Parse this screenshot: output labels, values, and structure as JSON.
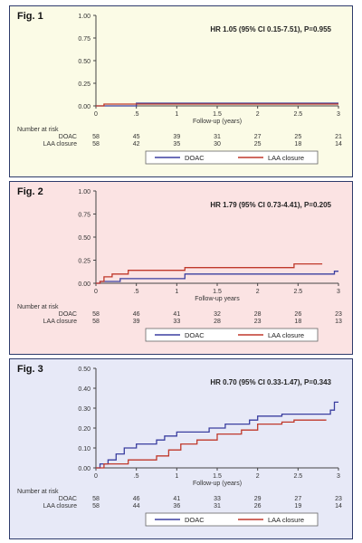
{
  "chart_data": [
    {
      "type": "line",
      "figure_label": "Fig. 1",
      "annotation": "HR 1.05 (95% CI 0.15-7.51), P=0.955",
      "xlabel": "Follow-up (years)",
      "xlim": [
        0,
        3
      ],
      "ylim": [
        0,
        1
      ],
      "x_ticks": [
        "0",
        ".5",
        "1",
        "1.5",
        "2",
        "2.5",
        "3"
      ],
      "y_ticks": [
        "0.00",
        "0.25",
        "0.50",
        "0.75",
        "1.00"
      ],
      "risk_title": "Number at risk",
      "series": [
        {
          "name": "DOAC",
          "color": "#3b3fa0",
          "x": [
            0,
            0.5,
            0.5,
            3
          ],
          "y": [
            0,
            0,
            0.03,
            0.03
          ],
          "risk": [
            "58",
            "45",
            "39",
            "31",
            "27",
            "25",
            "21"
          ]
        },
        {
          "name": "LAA closure",
          "color": "#c0392b",
          "x": [
            0,
            0.1,
            0.1,
            3
          ],
          "y": [
            0,
            0,
            0.02,
            0.02
          ],
          "risk": [
            "58",
            "42",
            "35",
            "30",
            "25",
            "18",
            "14"
          ]
        }
      ]
    },
    {
      "type": "line",
      "figure_label": "Fig. 2",
      "annotation": "HR 1.79 (95% CI 0.73-4.41), P=0.205",
      "xlabel": "Follow-up years",
      "xlim": [
        0,
        3
      ],
      "ylim": [
        0,
        1
      ],
      "x_ticks": [
        "0",
        ".5",
        "1",
        "1.5",
        "2",
        "2.5",
        "3"
      ],
      "y_ticks": [
        "0.00",
        "0.25",
        "0.50",
        "0.75",
        "1.00"
      ],
      "risk_title": "Number at risk",
      "series": [
        {
          "name": "DOAC",
          "color": "#3b3fa0",
          "x": [
            0,
            0.05,
            0.05,
            0.3,
            0.3,
            1.1,
            1.1,
            2.95,
            2.95,
            3
          ],
          "y": [
            0,
            0,
            0.02,
            0.02,
            0.05,
            0.05,
            0.1,
            0.1,
            0.13,
            0.13
          ],
          "risk": [
            "58",
            "46",
            "41",
            "32",
            "28",
            "26",
            "23"
          ]
        },
        {
          "name": "LAA closure",
          "color": "#c0392b",
          "x": [
            0,
            0.05,
            0.05,
            0.1,
            0.1,
            0.2,
            0.2,
            0.4,
            0.4,
            1.1,
            1.1,
            2.45,
            2.45,
            2.8
          ],
          "y": [
            0,
            0,
            0.02,
            0.02,
            0.07,
            0.07,
            0.1,
            0.1,
            0.14,
            0.14,
            0.17,
            0.17,
            0.21,
            0.21
          ],
          "risk": [
            "58",
            "39",
            "33",
            "28",
            "23",
            "18",
            "13"
          ]
        }
      ]
    },
    {
      "type": "line",
      "figure_label": "Fig. 3",
      "annotation": "HR 0.70 (95% CI 0.33-1.47), P=0.343",
      "xlabel": "Follow-up (years)",
      "xlim": [
        0,
        3
      ],
      "ylim": [
        0,
        0.5
      ],
      "x_ticks": [
        "0",
        ".5",
        "1",
        "1.5",
        "2",
        "2.5",
        "3"
      ],
      "y_ticks": [
        "0.00",
        "0.10",
        "0.20",
        "0.30",
        "0.40",
        "0.50"
      ],
      "risk_title": "Number at risk",
      "series": [
        {
          "name": "DOAC",
          "color": "#3b3fa0",
          "x": [
            0,
            0.05,
            0.05,
            0.15,
            0.15,
            0.25,
            0.25,
            0.35,
            0.35,
            0.5,
            0.5,
            0.75,
            0.75,
            0.85,
            0.85,
            1.0,
            1.0,
            1.4,
            1.4,
            1.6,
            1.6,
            1.9,
            1.9,
            2.0,
            2.0,
            2.3,
            2.3,
            2.9,
            2.9,
            2.95,
            2.95,
            3.0
          ],
          "y": [
            0,
            0,
            0.02,
            0.02,
            0.04,
            0.04,
            0.07,
            0.07,
            0.1,
            0.1,
            0.12,
            0.12,
            0.14,
            0.14,
            0.16,
            0.16,
            0.18,
            0.18,
            0.2,
            0.2,
            0.22,
            0.22,
            0.24,
            0.24,
            0.26,
            0.26,
            0.27,
            0.27,
            0.29,
            0.29,
            0.33,
            0.33
          ],
          "risk": [
            "58",
            "46",
            "41",
            "33",
            "29",
            "27",
            "23"
          ]
        },
        {
          "name": "LAA closure",
          "color": "#c0392b",
          "x": [
            0,
            0.1,
            0.1,
            0.4,
            0.4,
            0.75,
            0.75,
            0.9,
            0.9,
            1.05,
            1.05,
            1.25,
            1.25,
            1.5,
            1.5,
            1.8,
            1.8,
            2.0,
            2.0,
            2.3,
            2.3,
            2.45,
            2.45,
            2.85
          ],
          "y": [
            0,
            0,
            0.02,
            0.02,
            0.04,
            0.04,
            0.06,
            0.06,
            0.09,
            0.09,
            0.12,
            0.12,
            0.14,
            0.14,
            0.17,
            0.17,
            0.19,
            0.19,
            0.22,
            0.22,
            0.23,
            0.23,
            0.24,
            0.24
          ],
          "risk": [
            "58",
            "44",
            "36",
            "31",
            "26",
            "19",
            "14"
          ]
        }
      ]
    }
  ]
}
